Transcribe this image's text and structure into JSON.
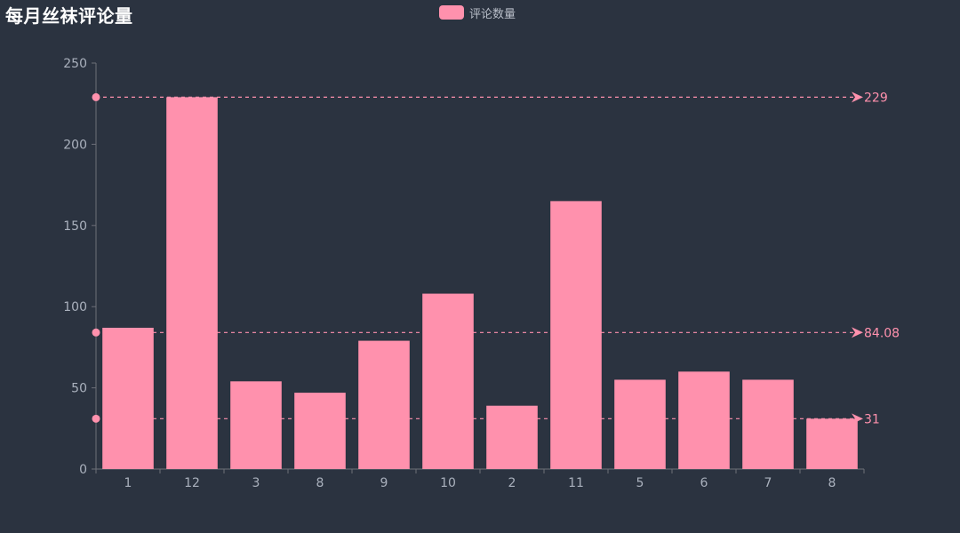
{
  "title": "每月丝袜评论量",
  "legend": {
    "label": "评论数量",
    "color": "#ff91ad"
  },
  "colors": {
    "background": "#2b3340",
    "bar": "#ff91ad",
    "axis": "#6e7079",
    "tick_text": "#aab1bd"
  },
  "chart_data": {
    "type": "bar",
    "title": "每月丝袜评论量",
    "categories": [
      "1",
      "12",
      "3",
      "8",
      "9",
      "10",
      "2",
      "11",
      "5",
      "6",
      "7",
      "8"
    ],
    "series": [
      {
        "name": "评论数量",
        "values": [
          87,
          229,
          54,
          47,
          79,
          108,
          39,
          165,
          55,
          60,
          55,
          31
        ]
      }
    ],
    "ylim": [
      0,
      250
    ],
    "yticks": [
      0,
      50,
      100,
      150,
      200,
      250
    ],
    "grid": false,
    "legend_position": "top-center",
    "mark_lines": [
      {
        "type": "max",
        "value": 229,
        "label": "229"
      },
      {
        "type": "average",
        "value": 84.08,
        "label": "84.08"
      },
      {
        "type": "min",
        "value": 31,
        "label": "31"
      }
    ]
  }
}
